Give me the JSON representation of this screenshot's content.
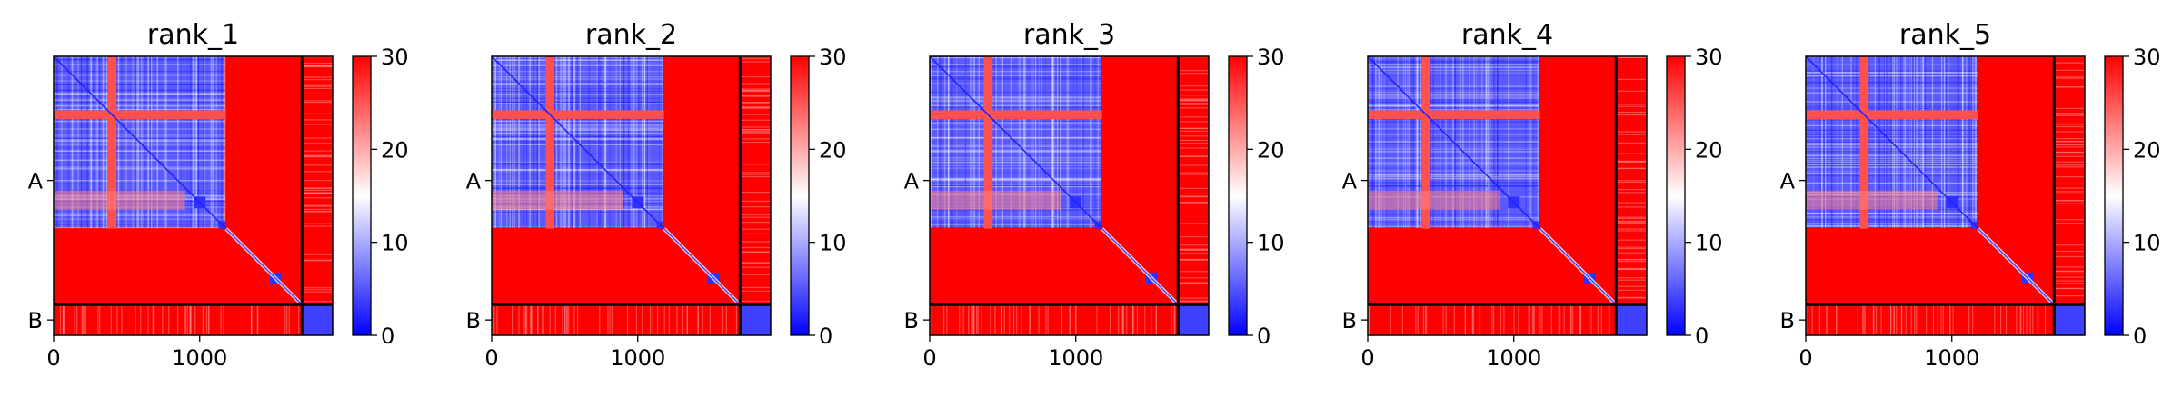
{
  "chart_data": [
    {
      "type": "heatmap",
      "title": "rank_1",
      "xlabel": "",
      "ylabel": "",
      "x_ticks": [
        "0",
        "1000"
      ],
      "y_ticks": [
        "A",
        "B"
      ],
      "colorbar": {
        "ticks": [
          "0",
          "10",
          "20",
          "30"
        ],
        "range": [
          0,
          30
        ],
        "colormap": "bwr"
      },
      "chains": [
        {
          "name": "A",
          "length": 1700
        },
        {
          "name": "B",
          "length": 210
        }
      ],
      "total_length": 1910
    },
    {
      "type": "heatmap",
      "title": "rank_2",
      "xlabel": "",
      "ylabel": "",
      "x_ticks": [
        "0",
        "1000"
      ],
      "y_ticks": [
        "A",
        "B"
      ],
      "colorbar": {
        "ticks": [
          "0",
          "10",
          "20",
          "30"
        ],
        "range": [
          0,
          30
        ],
        "colormap": "bwr"
      },
      "chains": [
        {
          "name": "A",
          "length": 1700
        },
        {
          "name": "B",
          "length": 210
        }
      ],
      "total_length": 1910
    },
    {
      "type": "heatmap",
      "title": "rank_3",
      "xlabel": "",
      "ylabel": "",
      "x_ticks": [
        "0",
        "1000"
      ],
      "y_ticks": [
        "A",
        "B"
      ],
      "colorbar": {
        "ticks": [
          "0",
          "10",
          "20",
          "30"
        ],
        "range": [
          0,
          30
        ],
        "colormap": "bwr"
      },
      "chains": [
        {
          "name": "A",
          "length": 1700
        },
        {
          "name": "B",
          "length": 210
        }
      ],
      "total_length": 1910
    },
    {
      "type": "heatmap",
      "title": "rank_4",
      "xlabel": "",
      "ylabel": "",
      "x_ticks": [
        "0",
        "1000"
      ],
      "y_ticks": [
        "A",
        "B"
      ],
      "colorbar": {
        "ticks": [
          "0",
          "10",
          "20",
          "30"
        ],
        "range": [
          0,
          30
        ],
        "colormap": "bwr"
      },
      "chains": [
        {
          "name": "A",
          "length": 1700
        },
        {
          "name": "B",
          "length": 210
        }
      ],
      "total_length": 1910
    },
    {
      "type": "heatmap",
      "title": "rank_5",
      "xlabel": "",
      "ylabel": "",
      "x_ticks": [
        "0",
        "1000"
      ],
      "y_ticks": [
        "A",
        "B"
      ],
      "colorbar": {
        "ticks": [
          "0",
          "10",
          "20",
          "30"
        ],
        "range": [
          0,
          30
        ],
        "colormap": "bwr"
      },
      "chains": [
        {
          "name": "A",
          "length": 1700
        },
        {
          "name": "B",
          "length": 210
        }
      ],
      "total_length": 1910
    }
  ],
  "colors": {
    "low": "#0000ff",
    "mid": "#ffffff",
    "high": "#ff0000",
    "frame": "#000000"
  }
}
